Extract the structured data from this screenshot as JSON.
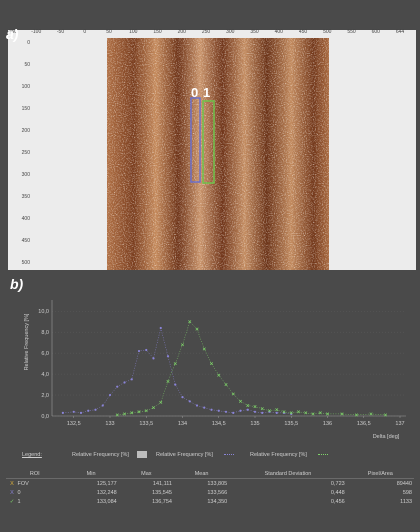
{
  "panel_labels": {
    "a": "a)",
    "b": "b)"
  },
  "image_panel": {
    "x_ticks": [
      "-150",
      "-100",
      "-50",
      "0",
      "50",
      "100",
      "150",
      "200",
      "250",
      "300",
      "350",
      "400",
      "450",
      "500",
      "550",
      "600",
      "644"
    ],
    "y_ticks": [
      "0",
      "50",
      "100",
      "150",
      "200",
      "250",
      "300",
      "350",
      "400",
      "450",
      "500"
    ],
    "roi_labels": [
      "0",
      "1"
    ],
    "colors": {
      "roi_0": "#6b6fc9",
      "roi_1": "#6fc24a",
      "frame": "#ececec"
    }
  },
  "chart_data": {
    "type": "line",
    "title": "",
    "xlabel": "Delta [deg]",
    "ylabel": "Relative Frequency [%]",
    "xlim": [
      132.2,
      137
    ],
    "ylim": [
      0,
      10.5
    ],
    "x_ticks": [
      "132,5",
      "133",
      "133,5",
      "134",
      "134,5",
      "135",
      "135,5",
      "136",
      "136,5",
      "137"
    ],
    "y_ticks": [
      "0,0",
      "2,0",
      "4,0",
      "6,0",
      "8,0",
      "10,0"
    ],
    "series": [
      {
        "name": "0",
        "color": "#8a84d8",
        "marker": "circle",
        "x": [
          132.35,
          132.5,
          132.6,
          132.7,
          132.8,
          132.9,
          133.0,
          133.1,
          133.2,
          133.3,
          133.4,
          133.5,
          133.6,
          133.7,
          133.8,
          133.9,
          134.0,
          134.1,
          134.2,
          134.3,
          134.4,
          134.5,
          134.6,
          134.7,
          134.8,
          134.9,
          135.0,
          135.1,
          135.2,
          135.3,
          135.4,
          135.5
        ],
        "y": [
          0.3,
          0.4,
          0.3,
          0.5,
          0.6,
          1.0,
          2.0,
          2.8,
          3.2,
          3.5,
          6.2,
          6.3,
          5.5,
          8.4,
          5.7,
          3.0,
          1.8,
          1.4,
          1.0,
          0.8,
          0.6,
          0.5,
          0.4,
          0.3,
          0.5,
          0.6,
          0.4,
          0.3,
          0.4,
          0.3,
          0.3,
          0.2
        ]
      },
      {
        "name": "1",
        "color": "#7fd46a",
        "marker": "cross",
        "x": [
          133.1,
          133.2,
          133.3,
          133.4,
          133.5,
          133.6,
          133.7,
          133.8,
          133.9,
          134.0,
          134.1,
          134.2,
          134.3,
          134.4,
          134.5,
          134.6,
          134.7,
          134.8,
          134.9,
          135.0,
          135.1,
          135.2,
          135.3,
          135.4,
          135.5,
          135.6,
          135.7,
          135.8,
          135.9,
          136.0,
          136.2,
          136.4,
          136.6,
          136.8
        ],
        "y": [
          0.1,
          0.2,
          0.3,
          0.4,
          0.5,
          0.8,
          1.3,
          3.3,
          5.0,
          6.8,
          9.0,
          8.3,
          6.4,
          5.0,
          3.9,
          3.0,
          2.1,
          1.4,
          1.0,
          0.9,
          0.7,
          0.5,
          0.6,
          0.4,
          0.3,
          0.4,
          0.3,
          0.2,
          0.3,
          0.2,
          0.2,
          0.1,
          0.2,
          0.1
        ]
      }
    ]
  },
  "legend": {
    "label": "Legend:",
    "entries": [
      "Relative Frequency [%]",
      "Relative Frequency [%]",
      "Relative Frequency [%]"
    ],
    "swatch_colors": [
      "#bdbdbd",
      "#8a84d8",
      "#7fd46a"
    ]
  },
  "stats_table": {
    "headers": [
      "ROI",
      "Min",
      "Max",
      "Mean",
      "Standard Deviation",
      "Pixel/Area"
    ],
    "rows": [
      {
        "mark": "X",
        "mark_color": "#e0b23a",
        "roi": "FOV",
        "min": "125,177",
        "max": "141,111",
        "mean": "133,805",
        "std": "0,723",
        "area": "89440"
      },
      {
        "mark": "X",
        "mark_color": "#8a84d8",
        "roi": "0",
        "min": "132,248",
        "max": "135,545",
        "mean": "133,566",
        "std": "0,448",
        "area": "598"
      },
      {
        "mark": "✓",
        "mark_color": "#7fd46a",
        "roi": "1",
        "min": "133,084",
        "max": "136,754",
        "mean": "134,350",
        "std": "0,456",
        "area": "1133"
      }
    ]
  }
}
